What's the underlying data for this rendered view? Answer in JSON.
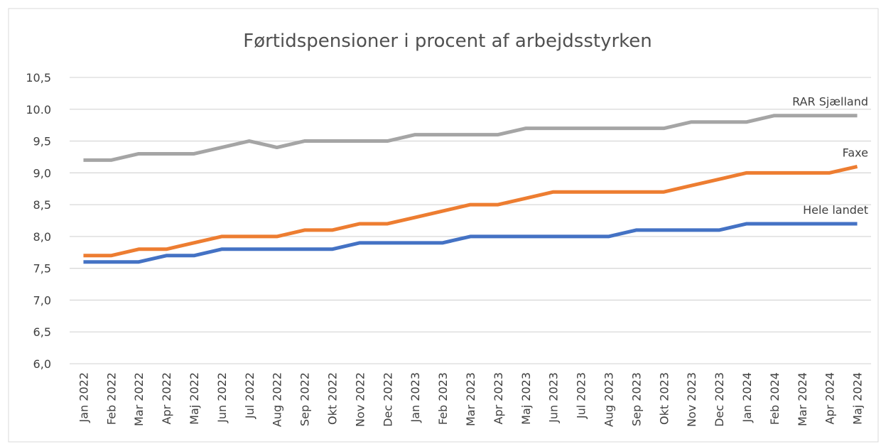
{
  "chart_data": {
    "type": "line",
    "title": "Førtidspensioner i procent af arbejdsstyrken",
    "categories": [
      "Jan 2022",
      "Feb 2022",
      "Mar 2022",
      "Apr 2022",
      "Maj 2022",
      "Jun 2022",
      "Jul 2022",
      "Aug 2022",
      "Sep 2022",
      "Okt 2022",
      "Nov 2022",
      "Dec 2022",
      "Jan 2023",
      "Feb 2023",
      "Mar 2023",
      "Apr 2023",
      "Maj 2023",
      "Jun 2023",
      "Jul 2023",
      "Aug 2023",
      "Sep 2023",
      "Okt 2023",
      "Nov 2023",
      "Dec 2023",
      "Jan 2024",
      "Feb 2024",
      "Mar 2024",
      "Apr 2024",
      "Maj 2024"
    ],
    "series": [
      {
        "name": "RAR Sjælland",
        "color": "#a5a5a5",
        "values": [
          9.2,
          9.2,
          9.3,
          9.3,
          9.3,
          9.4,
          9.5,
          9.4,
          9.5,
          9.5,
          9.5,
          9.5,
          9.6,
          9.6,
          9.6,
          9.6,
          9.7,
          9.7,
          9.7,
          9.7,
          9.7,
          9.7,
          9.8,
          9.8,
          9.8,
          9.9,
          9.9,
          9.9,
          9.9
        ]
      },
      {
        "name": "Faxe",
        "color": "#ed7d31",
        "values": [
          7.7,
          7.7,
          7.8,
          7.8,
          7.9,
          8.0,
          8.0,
          8.0,
          8.1,
          8.1,
          8.2,
          8.2,
          8.3,
          8.4,
          8.5,
          8.5,
          8.6,
          8.7,
          8.7,
          8.7,
          8.7,
          8.7,
          8.8,
          8.9,
          9.0,
          9.0,
          9.0,
          9.0,
          9.1
        ]
      },
      {
        "name": "Hele landet",
        "color": "#4472c4",
        "values": [
          7.6,
          7.6,
          7.6,
          7.7,
          7.7,
          7.8,
          7.8,
          7.8,
          7.8,
          7.8,
          7.9,
          7.9,
          7.9,
          7.9,
          8.0,
          8.0,
          8.0,
          8.0,
          8.0,
          8.0,
          8.1,
          8.1,
          8.1,
          8.1,
          8.2,
          8.2,
          8.2,
          8.2,
          8.2
        ]
      }
    ],
    "ylim": [
      6.0,
      10.5
    ],
    "yticks": [
      {
        "value": 6.0,
        "label": "6,0"
      },
      {
        "value": 6.5,
        "label": "6,5"
      },
      {
        "value": 7.0,
        "label": "7,0"
      },
      {
        "value": 7.5,
        "label": "7,5"
      },
      {
        "value": 8.0,
        "label": "8,0"
      },
      {
        "value": 8.5,
        "label": "8,5"
      },
      {
        "value": 9.0,
        "label": "9,0"
      },
      {
        "value": 9.5,
        "label": "9,5"
      },
      {
        "value": 10.0,
        "label": "10.0"
      },
      {
        "value": 10.5,
        "label": "10,5"
      }
    ],
    "grid": true
  }
}
